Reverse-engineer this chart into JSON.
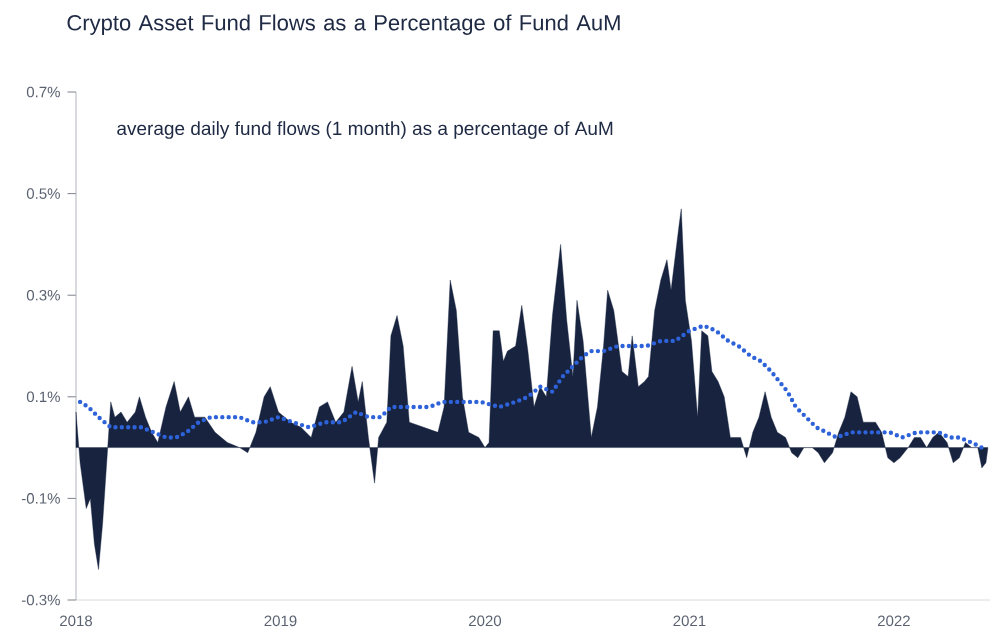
{
  "chart_data": {
    "type": "area",
    "title": "Crypto Asset Fund Flows as a Percentage of Fund AuM",
    "annotations": [
      "average daily fund flows (1 month) as a percentage of AuM"
    ],
    "xlim": [
      2018,
      2022.47
    ],
    "xticks": [
      2018,
      2019,
      2020,
      2021,
      2022
    ],
    "ylim": [
      -0.3,
      0.7
    ],
    "yticks": [
      {
        "value": -0.3,
        "label": "-0.3%"
      },
      {
        "value": -0.1,
        "label": "-0.1%"
      },
      {
        "value": 0.1,
        "label": "0.1%"
      },
      {
        "value": 0.3,
        "label": "0.3%"
      },
      {
        "value": 0.5,
        "label": "0.5%"
      },
      {
        "value": 0.7,
        "label": "0.7%"
      }
    ],
    "grid": false,
    "series": [
      {
        "color": "#17233f",
        "x": [
          2018.0,
          2018.01,
          2018.02,
          2018.05,
          2018.07,
          2018.09,
          2018.11,
          2018.13,
          2018.15,
          2018.17,
          2018.19,
          2018.22,
          2018.25,
          2018.29,
          2018.31,
          2018.34,
          2018.37,
          2018.4,
          2018.44,
          2018.48,
          2018.51,
          2018.55,
          2018.58,
          2018.63,
          2018.68,
          2018.74,
          2018.8,
          2018.84,
          2018.88,
          2018.92,
          2018.95,
          2018.99,
          2019.05,
          2019.1,
          2019.15,
          2019.19,
          2019.23,
          2019.27,
          2019.31,
          2019.35,
          2019.38,
          2019.4,
          2019.43,
          2019.46,
          2019.48,
          2019.52,
          2019.54,
          2019.57,
          2019.6,
          2019.63,
          2019.7,
          2019.77,
          2019.8,
          2019.83,
          2019.86,
          2019.89,
          2019.92,
          2019.97,
          2020.0,
          2020.02,
          2020.04,
          2020.07,
          2020.09,
          2020.11,
          2020.15,
          2020.18,
          2020.21,
          2020.24,
          2020.27,
          2020.3,
          2020.33,
          2020.37,
          2020.4,
          2020.43,
          2020.45,
          2020.48,
          2020.52,
          2020.55,
          2020.58,
          2020.6,
          2020.63,
          2020.67,
          2020.7,
          2020.72,
          2020.75,
          2020.78,
          2020.8,
          2020.83,
          2020.86,
          2020.89,
          2020.91,
          2020.95,
          2020.96,
          2020.98,
          2021.01,
          2021.04,
          2021.06,
          2021.09,
          2021.11,
          2021.14,
          2021.17,
          2021.2,
          2021.25,
          2021.28,
          2021.31,
          2021.34,
          2021.37,
          2021.4,
          2021.43,
          2021.47,
          2021.5,
          2021.53,
          2021.56,
          2021.6,
          2021.63,
          2021.66,
          2021.7,
          2021.73,
          2021.76,
          2021.79,
          2021.82,
          2021.85,
          2021.88,
          2021.91,
          2021.94,
          2021.97,
          2022.0,
          2022.03,
          2022.07,
          2022.1,
          2022.13,
          2022.16,
          2022.19,
          2022.22,
          2022.26,
          2022.29,
          2022.32,
          2022.35,
          2022.38,
          2022.41,
          2022.43,
          2022.45,
          2022.46
        ],
        "values": [
          0.07,
          0.02,
          -0.03,
          -0.12,
          -0.1,
          -0.19,
          -0.24,
          -0.15,
          -0.03,
          0.09,
          0.06,
          0.07,
          0.05,
          0.07,
          0.1,
          0.06,
          0.03,
          0.01,
          0.08,
          0.13,
          0.07,
          0.1,
          0.06,
          0.06,
          0.03,
          0.01,
          0.0,
          -0.01,
          0.03,
          0.1,
          0.12,
          0.07,
          0.05,
          0.04,
          0.02,
          0.08,
          0.09,
          0.05,
          0.07,
          0.16,
          0.09,
          0.13,
          0.02,
          -0.07,
          0.02,
          0.05,
          0.22,
          0.26,
          0.2,
          0.05,
          0.04,
          0.03,
          0.08,
          0.33,
          0.27,
          0.1,
          0.03,
          0.02,
          0.0,
          0.01,
          0.23,
          0.23,
          0.17,
          0.19,
          0.2,
          0.28,
          0.19,
          0.08,
          0.12,
          0.1,
          0.26,
          0.4,
          0.25,
          0.14,
          0.29,
          0.21,
          0.02,
          0.08,
          0.2,
          0.31,
          0.27,
          0.15,
          0.14,
          0.22,
          0.12,
          0.13,
          0.14,
          0.27,
          0.33,
          0.37,
          0.31,
          0.44,
          0.47,
          0.29,
          0.21,
          0.06,
          0.23,
          0.22,
          0.15,
          0.13,
          0.1,
          0.02,
          0.02,
          -0.02,
          0.03,
          0.06,
          0.11,
          0.06,
          0.03,
          0.02,
          -0.01,
          -0.02,
          0.0,
          0.0,
          -0.01,
          -0.03,
          -0.01,
          0.03,
          0.06,
          0.11,
          0.1,
          0.05,
          0.05,
          0.05,
          0.03,
          -0.02,
          -0.03,
          -0.02,
          0.0,
          0.02,
          0.02,
          0.0,
          0.02,
          0.03,
          0.01,
          -0.03,
          -0.02,
          0.01,
          0.0,
          0.0,
          -0.04,
          -0.03,
          0.0
        ]
      },
      {
        "type": "line",
        "color": "#2e62d9",
        "line_style": "dotted",
        "x": [
          2018.02,
          2018.06,
          2018.11,
          2018.17,
          2018.25,
          2018.32,
          2018.38,
          2018.44,
          2018.49,
          2018.54,
          2018.6,
          2018.66,
          2018.73,
          2018.8,
          2018.86,
          2018.92,
          2018.99,
          2019.06,
          2019.14,
          2019.22,
          2019.3,
          2019.37,
          2019.43,
          2019.49,
          2019.54,
          2019.6,
          2019.67,
          2019.73,
          2019.79,
          2019.86,
          2019.92,
          2019.98,
          2020.07,
          2020.15,
          2020.21,
          2020.27,
          2020.33,
          2020.38,
          2020.43,
          2020.48,
          2020.52,
          2020.58,
          2020.65,
          2020.72,
          2020.79,
          2020.86,
          2020.93,
          2021.0,
          2021.07,
          2021.13,
          2021.19,
          2021.24,
          2021.3,
          2021.35,
          2021.4,
          2021.44,
          2021.48,
          2021.52,
          2021.57,
          2021.62,
          2021.67,
          2021.72,
          2021.79,
          2021.85,
          2021.91,
          2021.98,
          2022.04,
          2022.11,
          2022.16,
          2022.22,
          2022.27,
          2022.32,
          2022.38,
          2022.43
        ],
        "values": [
          0.09,
          0.08,
          0.06,
          0.04,
          0.04,
          0.04,
          0.03,
          0.02,
          0.02,
          0.03,
          0.05,
          0.06,
          0.06,
          0.06,
          0.05,
          0.05,
          0.06,
          0.05,
          0.04,
          0.05,
          0.05,
          0.07,
          0.06,
          0.06,
          0.08,
          0.08,
          0.08,
          0.08,
          0.09,
          0.09,
          0.09,
          0.09,
          0.08,
          0.09,
          0.1,
          0.12,
          0.11,
          0.14,
          0.16,
          0.18,
          0.19,
          0.19,
          0.2,
          0.2,
          0.2,
          0.21,
          0.21,
          0.23,
          0.24,
          0.23,
          0.21,
          0.2,
          0.18,
          0.17,
          0.15,
          0.13,
          0.11,
          0.08,
          0.06,
          0.04,
          0.03,
          0.02,
          0.03,
          0.03,
          0.03,
          0.03,
          0.02,
          0.03,
          0.03,
          0.03,
          0.02,
          0.02,
          0.01,
          0.0
        ]
      }
    ]
  }
}
